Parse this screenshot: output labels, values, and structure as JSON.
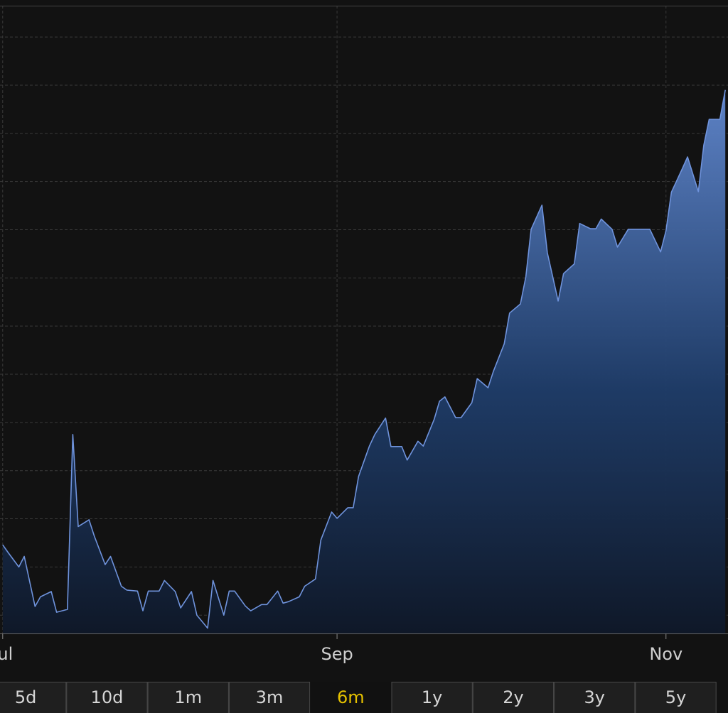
{
  "chart_data": {
    "type": "area",
    "x": [
      0,
      1,
      3,
      4,
      6,
      7,
      9,
      10,
      12,
      13,
      14,
      16,
      17,
      19,
      20,
      22,
      23,
      25,
      26,
      27,
      29,
      30,
      32,
      33,
      35,
      36,
      38,
      39,
      41,
      42,
      43,
      45,
      46,
      48,
      49,
      51,
      52,
      53,
      55,
      56,
      58,
      59,
      61,
      62,
      64,
      65,
      66,
      68,
      69,
      71,
      72,
      74,
      75,
      77,
      78,
      80,
      81,
      82,
      84,
      85,
      87,
      88,
      90,
      91,
      93,
      94,
      96,
      97,
      98,
      100,
      101,
      103,
      104,
      106,
      107,
      109,
      110,
      111,
      113,
      114,
      116,
      117,
      119,
      120,
      122,
      123,
      124,
      126,
      127,
      129,
      130,
      131,
      133,
      134
    ],
    "values": [
      1.46,
      1.3,
      1.0,
      1.22,
      0.18,
      0.38,
      0.49,
      0.06,
      0.12,
      3.75,
      1.84,
      1.98,
      1.64,
      1.05,
      1.22,
      0.6,
      0.52,
      0.5,
      0.09,
      0.5,
      0.5,
      0.72,
      0.49,
      0.15,
      0.49,
      0,
      -0.27,
      0.72,
      0,
      0.5,
      0.5,
      0.19,
      0.09,
      0.22,
      0.22,
      0.5,
      0.25,
      0.28,
      0.38,
      0.6,
      0.75,
      1.56,
      2.14,
      2.01,
      2.23,
      2.23,
      2.88,
      3.51,
      3.75,
      4.09,
      3.5,
      3.5,
      3.22,
      3.61,
      3.51,
      4.06,
      4.44,
      4.53,
      4.1,
      4.1,
      4.41,
      4.91,
      4.72,
      5.06,
      5.63,
      6.27,
      6.46,
      7.02,
      8.01,
      8.51,
      7.52,
      6.52,
      7.09,
      7.29,
      8.13,
      8.02,
      8.02,
      8.22,
      8.01,
      7.64,
      8.01,
      8.01,
      8.01,
      8.01,
      7.54,
      7.98,
      8.78,
      9.26,
      9.51,
      8.79,
      9.75,
      10.29,
      10.29,
      10.9
    ],
    "xlim": [
      -0.5,
      134.5
    ],
    "ylim": [
      -0.38,
      12.65
    ],
    "xticks": [
      {
        "value": 0,
        "label": "Jul"
      },
      {
        "value": 62,
        "label": "Sep"
      },
      {
        "value": 123,
        "label": "Nov"
      }
    ],
    "ygrid": [
      0,
      1,
      2,
      3,
      4,
      5,
      6,
      7,
      8,
      9,
      10,
      11,
      12
    ],
    "color": "#6f93dc",
    "grid": true
  },
  "range_buttons": {
    "labels": [
      "5d",
      "10d",
      "1m",
      "3m",
      "6m",
      "1y",
      "2y",
      "3y",
      "5y"
    ],
    "selected": 4
  }
}
